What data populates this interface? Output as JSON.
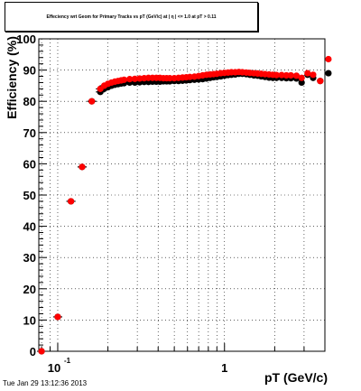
{
  "chart_data": {
    "type": "scatter",
    "title": "Effeciency wrt Geom for Primary Tracks vs pT (GeV/c) at | η | <= 1.0 at pT > 0.11",
    "xlabel": "pT (GeV/c)",
    "ylabel": "Efficiency (%)",
    "xscale": "log",
    "xlim": [
      0.077,
      4.0
    ],
    "ylim": [
      0,
      100
    ],
    "yticks": [
      0,
      10,
      20,
      30,
      40,
      50,
      60,
      70,
      80,
      90,
      100
    ],
    "yticklabels": [
      "0",
      "10",
      "20",
      "30",
      "40",
      "50",
      "60",
      "70",
      "80",
      "90",
      "100"
    ],
    "xticklabels": [
      {
        "value": 0.1,
        "base": "10",
        "exp": "-1"
      },
      {
        "value": 1,
        "base": "1",
        "exp": ""
      }
    ],
    "grid": true,
    "legend": "none",
    "series": [
      {
        "color": "#000000",
        "points": [
          [
            0.08,
            0
          ],
          [
            0.1,
            11
          ],
          [
            0.12,
            48
          ],
          [
            0.14,
            59
          ],
          [
            0.16,
            80
          ],
          [
            0.18,
            83
          ],
          [
            0.19,
            84
          ],
          [
            0.2,
            84.5
          ],
          [
            0.21,
            85
          ],
          [
            0.22,
            85.3
          ],
          [
            0.23,
            85.5
          ],
          [
            0.24,
            85.7
          ],
          [
            0.25,
            85.8
          ],
          [
            0.27,
            86
          ],
          [
            0.29,
            86
          ],
          [
            0.31,
            86.1
          ],
          [
            0.33,
            86.2
          ],
          [
            0.35,
            86.2
          ],
          [
            0.37,
            86.3
          ],
          [
            0.39,
            86.3
          ],
          [
            0.41,
            86.3
          ],
          [
            0.43,
            86.4
          ],
          [
            0.45,
            86.4
          ],
          [
            0.47,
            86.4
          ],
          [
            0.5,
            86.5
          ],
          [
            0.53,
            86.5
          ],
          [
            0.56,
            86.6
          ],
          [
            0.59,
            86.7
          ],
          [
            0.62,
            86.8
          ],
          [
            0.66,
            86.9
          ],
          [
            0.7,
            87
          ],
          [
            0.74,
            87.1
          ],
          [
            0.78,
            87.3
          ],
          [
            0.82,
            87.5
          ],
          [
            0.86,
            87.7
          ],
          [
            0.9,
            87.8
          ],
          [
            0.95,
            88
          ],
          [
            1.0,
            88.2
          ],
          [
            1.05,
            88.4
          ],
          [
            1.1,
            88.5
          ],
          [
            1.16,
            88.6
          ],
          [
            1.22,
            88.8
          ],
          [
            1.28,
            88.8
          ],
          [
            1.35,
            88.7
          ],
          [
            1.42,
            88.5
          ],
          [
            1.5,
            88.3
          ],
          [
            1.58,
            88.2
          ],
          [
            1.66,
            88
          ],
          [
            1.75,
            87.8
          ],
          [
            1.85,
            87.6
          ],
          [
            1.95,
            87.5
          ],
          [
            2.05,
            87.5
          ],
          [
            2.2,
            87.5
          ],
          [
            2.35,
            87.4
          ],
          [
            2.5,
            87.4
          ],
          [
            2.7,
            87.3
          ],
          [
            2.9,
            86
          ],
          [
            3.15,
            88.5
          ],
          [
            3.4,
            87.5
          ],
          [
            3.75,
            86.5
          ],
          [
            4.2,
            89
          ]
        ]
      },
      {
        "color": "#ff0000",
        "points": [
          [
            0.08,
            0
          ],
          [
            0.1,
            11
          ],
          [
            0.12,
            48
          ],
          [
            0.14,
            59
          ],
          [
            0.16,
            80
          ],
          [
            0.18,
            84
          ],
          [
            0.19,
            85
          ],
          [
            0.2,
            85.6
          ],
          [
            0.21,
            86
          ],
          [
            0.22,
            86.3
          ],
          [
            0.23,
            86.5
          ],
          [
            0.24,
            86.7
          ],
          [
            0.25,
            86.9
          ],
          [
            0.27,
            87.1
          ],
          [
            0.29,
            87.2
          ],
          [
            0.31,
            87.3
          ],
          [
            0.33,
            87.4
          ],
          [
            0.35,
            87.5
          ],
          [
            0.37,
            87.5
          ],
          [
            0.39,
            87.5
          ],
          [
            0.41,
            87.5
          ],
          [
            0.43,
            87.4
          ],
          [
            0.45,
            87.4
          ],
          [
            0.47,
            87.4
          ],
          [
            0.5,
            87.4
          ],
          [
            0.53,
            87.5
          ],
          [
            0.56,
            87.6
          ],
          [
            0.59,
            87.7
          ],
          [
            0.62,
            87.8
          ],
          [
            0.66,
            87.9
          ],
          [
            0.7,
            88.1
          ],
          [
            0.74,
            88.3
          ],
          [
            0.78,
            88.5
          ],
          [
            0.82,
            88.6
          ],
          [
            0.86,
            88.7
          ],
          [
            0.9,
            88.8
          ],
          [
            0.95,
            89
          ],
          [
            1.0,
            89.1
          ],
          [
            1.05,
            89.2
          ],
          [
            1.1,
            89.3
          ],
          [
            1.16,
            89.3
          ],
          [
            1.22,
            89.4
          ],
          [
            1.28,
            89.3
          ],
          [
            1.35,
            89.2
          ],
          [
            1.42,
            89.1
          ],
          [
            1.5,
            89
          ],
          [
            1.58,
            88.9
          ],
          [
            1.66,
            88.8
          ],
          [
            1.75,
            88.7
          ],
          [
            1.85,
            88.6
          ],
          [
            1.95,
            88.5
          ],
          [
            2.05,
            88.4
          ],
          [
            2.2,
            88.4
          ],
          [
            2.35,
            88.3
          ],
          [
            2.5,
            88.3
          ],
          [
            2.7,
            88.2
          ],
          [
            2.9,
            87.5
          ],
          [
            3.15,
            89
          ],
          [
            3.4,
            88.5
          ],
          [
            3.75,
            86.5
          ],
          [
            4.2,
            93.5
          ]
        ]
      }
    ]
  },
  "footer": "Tue Jan 29 13:12:36 2013"
}
